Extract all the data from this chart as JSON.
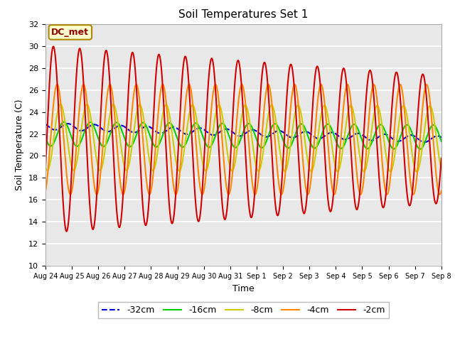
{
  "title": "Soil Temperatures Set 1",
  "xlabel": "Time",
  "ylabel": "Soil Temperature (C)",
  "ylim": [
    10,
    32
  ],
  "xlim_days": 15,
  "annotation": "DC_met",
  "plot_bg_color": "#e8e8e8",
  "fig_bg_color": "#ffffff",
  "grid_color": "#ffffff",
  "legend": [
    "-32cm",
    "-16cm",
    "-8cm",
    "-4cm",
    "-2cm"
  ],
  "line_colors": [
    "#0000dd",
    "#00cc00",
    "#cccc00",
    "#ff8800",
    "#cc0000"
  ],
  "line_styles": [
    "--",
    "-",
    "-",
    "-",
    "-"
  ],
  "line_widths": [
    1.5,
    1.5,
    1.5,
    1.5,
    1.5
  ],
  "x_tick_labels": [
    "Aug 24",
    "Aug 25",
    "Aug 26",
    "Aug 27",
    "Aug 28",
    "Aug 29",
    "Aug 30",
    "Aug 31",
    "Sep 1",
    "Sep 2",
    "Sep 3",
    "Sep 4",
    "Sep 5",
    "Sep 6",
    "Sep 7",
    "Sep 8"
  ],
  "x_tick_positions": [
    0,
    1,
    2,
    3,
    4,
    5,
    6,
    7,
    8,
    9,
    10,
    11,
    12,
    13,
    14,
    15
  ]
}
